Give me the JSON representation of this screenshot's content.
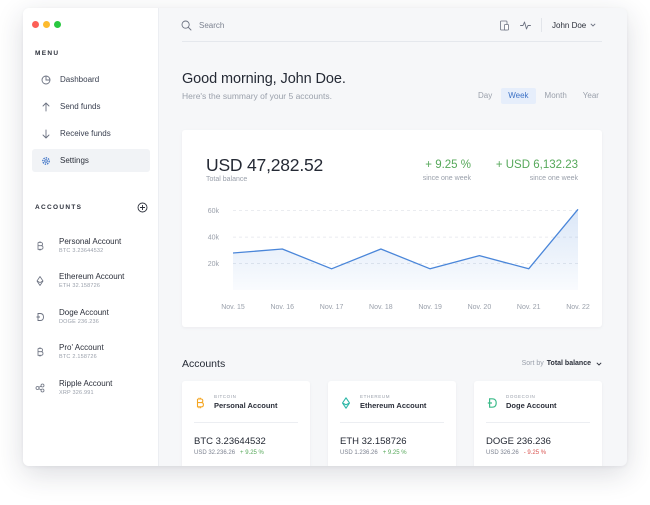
{
  "window_controls": {
    "close_color": "#fc5f57",
    "minimize_color": "#fdbb2e",
    "maximize_color": "#28c840"
  },
  "sidebar": {
    "menu_title": "MENU",
    "nav": [
      {
        "label": "Dashboard",
        "icon": "pie-chart-icon"
      },
      {
        "label": "Send funds",
        "icon": "arrow-up-icon"
      },
      {
        "label": "Receive funds",
        "icon": "arrow-down-icon"
      },
      {
        "label": "Settings",
        "icon": "gear-icon",
        "active": true
      }
    ],
    "accounts_title": "ACCOUNTS",
    "accounts": [
      {
        "name": "Personal Account",
        "sub": "BTC 3.23644532",
        "icon": "bitcoin-icon"
      },
      {
        "name": "Ethereum Account",
        "sub": "ETH 32.158726",
        "icon": "ethereum-icon"
      },
      {
        "name": "Doge Account",
        "sub": "DOGE 236.236",
        "icon": "dogecoin-icon"
      },
      {
        "name": "Pro' Account",
        "sub": "BTC 2.158726",
        "icon": "bitcoin-icon"
      },
      {
        "name": "Ripple Account",
        "sub": "XRP 326.991",
        "icon": "ripple-icon"
      }
    ]
  },
  "topbar": {
    "search_placeholder": "Search",
    "user_name": "John Doe"
  },
  "header": {
    "greeting": "Good morning, John Doe.",
    "subtitle": "Here's the summary of your 5 accounts.",
    "periods": [
      "Day",
      "Week",
      "Month",
      "Year"
    ],
    "active_period": "Week"
  },
  "balance_card": {
    "total": "USD 47,282.52",
    "total_label": "Total balance",
    "change_pct": "+ 9.25 %",
    "change_pct_label": "since one week",
    "change_usd": "+ USD 6,132.23",
    "change_usd_label": "since one week"
  },
  "chart_data": {
    "type": "area",
    "categories": [
      "Nov. 15",
      "Nov. 16",
      "Nov. 17",
      "Nov. 18",
      "Nov. 19",
      "Nov. 20",
      "Nov. 21",
      "Nov. 22"
    ],
    "values": [
      28000,
      31000,
      16000,
      31000,
      16000,
      26000,
      16000,
      61000
    ],
    "y_ticks": [
      {
        "value": 20000,
        "label": "20k"
      },
      {
        "value": 40000,
        "label": "40k"
      },
      {
        "value": 60000,
        "label": "60k"
      }
    ],
    "ylim": [
      0,
      62000
    ],
    "grid": true,
    "line_color": "#4a86d9"
  },
  "accounts_section": {
    "title": "Accounts",
    "sort_label": "Sort by",
    "sort_value": "Total balance",
    "cards": [
      {
        "tag": "BITCOIN",
        "name": "Personal Account",
        "amount": "BTC 3.23644532",
        "usd": "USD 32.236.26",
        "change": "+ 9.25 %",
        "change_dir": "pos",
        "icon": "bitcoin-icon",
        "icon_color": "#f5a623"
      },
      {
        "tag": "ETHEREUM",
        "name": "Ethereum Account",
        "amount": "ETH 32.158726",
        "usd": "USD 1.236.26",
        "change": "+ 9.25 %",
        "change_dir": "pos",
        "icon": "ethereum-icon",
        "icon_color": "#2cb7a7"
      },
      {
        "tag": "DOGECOIN",
        "name": "Doge Account",
        "amount": "DOGE 236.236",
        "usd": "USD 326.26",
        "change": "- 9.25 %",
        "change_dir": "neg",
        "icon": "dogecoin-icon",
        "icon_color": "#3dbb8a"
      }
    ]
  }
}
